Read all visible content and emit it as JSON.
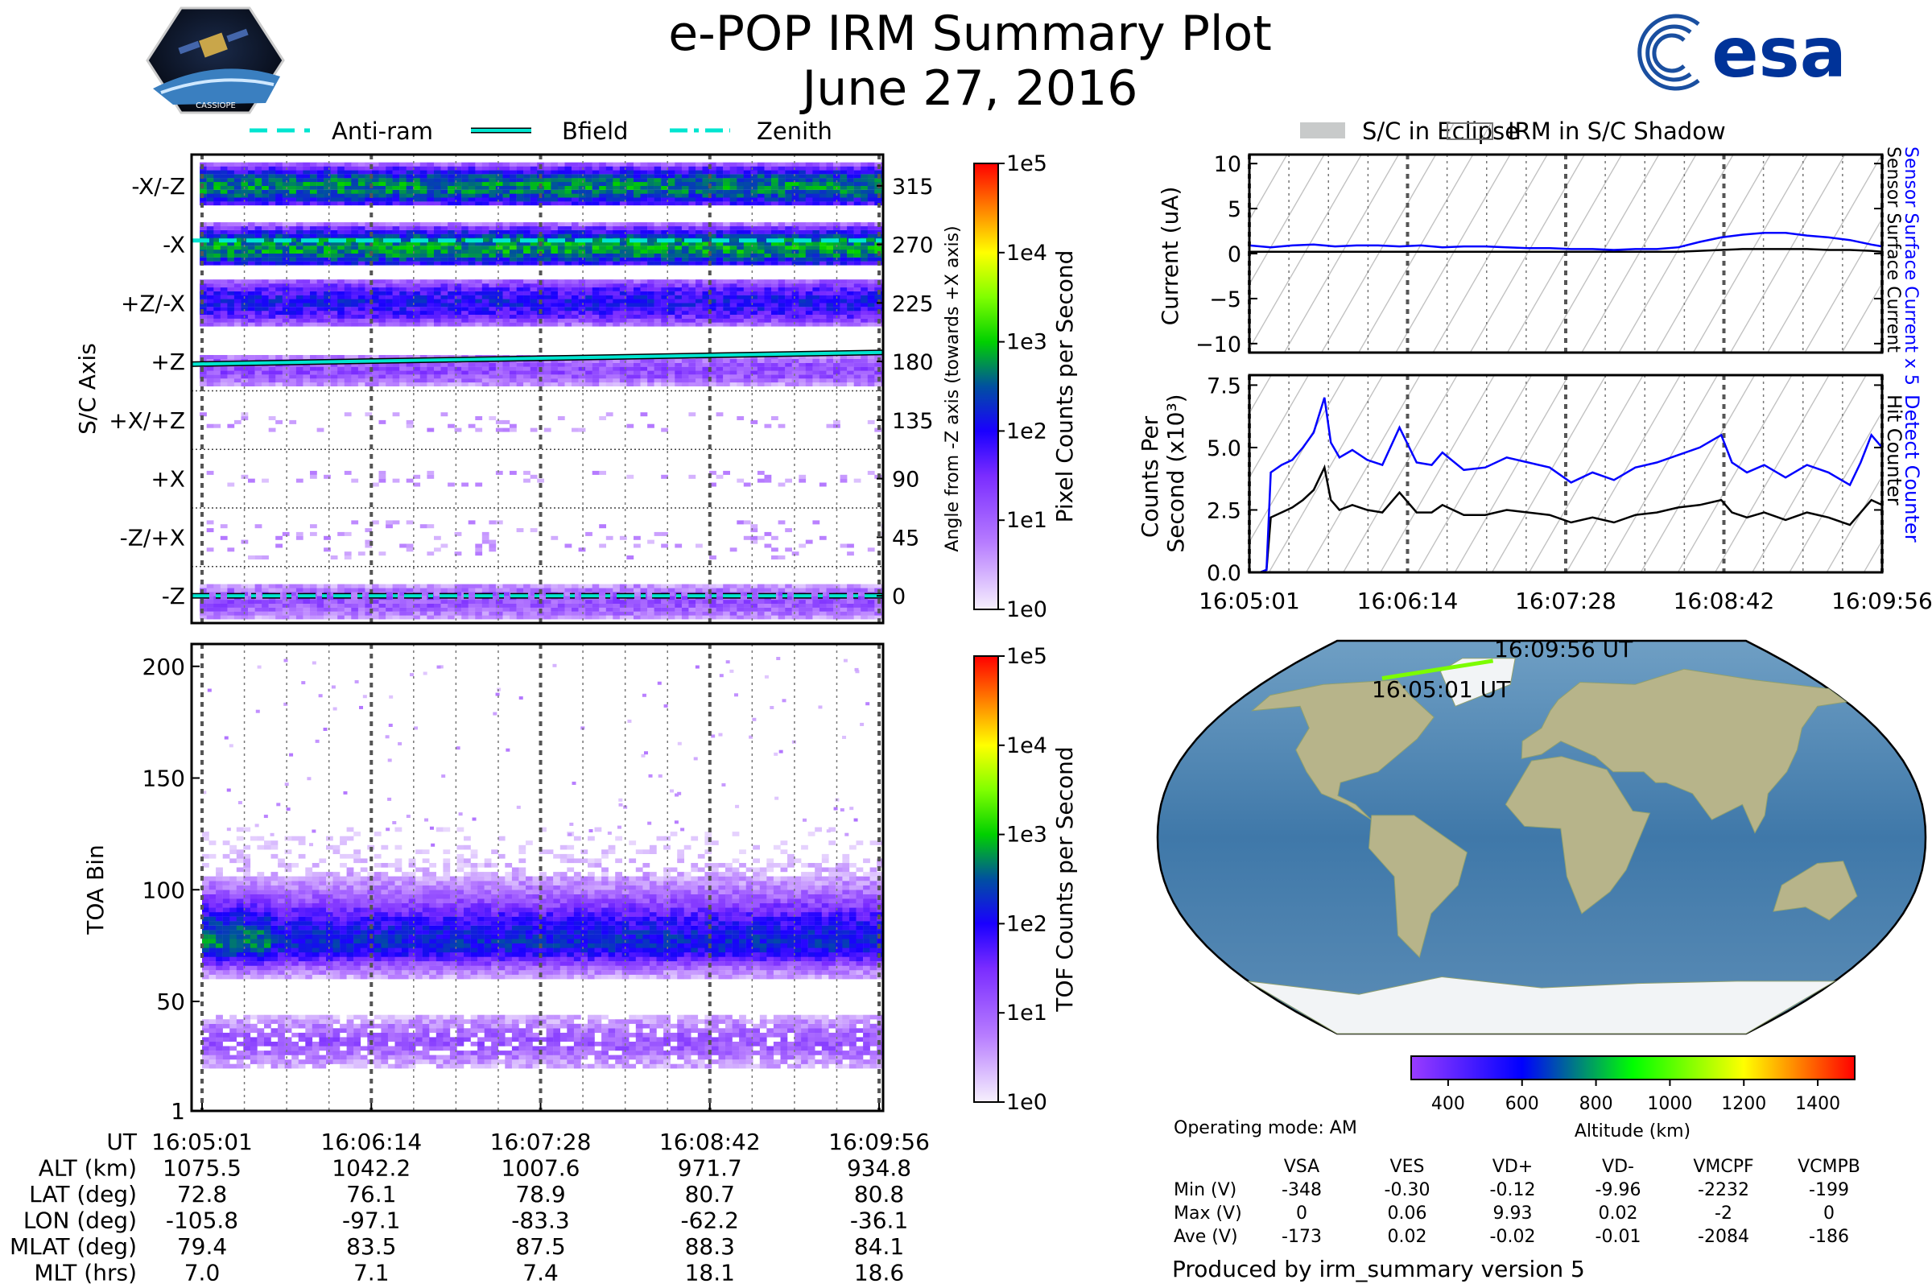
{
  "header": {
    "title": "e-POP IRM Summary Plot",
    "date": "June 27, 2016",
    "left_logo": "CASSIOPE mission logo",
    "left_logo_text": "CASSIOPE",
    "right_logo": "esa"
  },
  "angle_legend": {
    "items": [
      {
        "label": "Anti-ram",
        "style": "dashed",
        "color": "#00e5d0"
      },
      {
        "label": "Bfield",
        "style": "solid",
        "color": "#00e5d0"
      },
      {
        "label": "Zenith",
        "style": "dash-dot",
        "color": "#00e5d0"
      }
    ]
  },
  "shadow_legend": {
    "items": [
      {
        "label": "S/C in Eclipse",
        "style": "gray-fill"
      },
      {
        "label": "IRM in S/C Shadow",
        "style": "hatch"
      }
    ]
  },
  "colors": {
    "blue_series": "#0000ff",
    "black_series": "#000000",
    "track": "#7cfc00"
  },
  "chart_data": [
    {
      "id": "pixel-spectrogram",
      "type": "heatmap",
      "ylabel_left": "S/C Axis",
      "ylabel_right": "Angle from -Z axis (towards +X axis)",
      "x_range_s": [
        0,
        295
      ],
      "ylim": [
        -21,
        339
      ],
      "axis_labels": [
        "-X/-Z",
        "-X",
        "+Z/-X",
        "+Z",
        "+X/+Z",
        "+X",
        "-Z/+X",
        "-Z"
      ],
      "axis_angles": [
        315,
        270,
        225,
        180,
        135,
        90,
        45,
        0
      ],
      "angle_ticks": [
        "315",
        "270",
        "225",
        "180",
        "135",
        "90",
        "45",
        "0"
      ],
      "colorbar": {
        "label": "Pixel Counts per Second",
        "ticks": [
          "1e5",
          "1e4",
          "1e3",
          "1e2",
          "1e1",
          "1e0"
        ],
        "scale": "log",
        "range": [
          1,
          100000
        ]
      },
      "bands": [
        {
          "from": 300,
          "to": 332,
          "core": 313,
          "peak_log10": 2.7
        },
        {
          "from": 254,
          "to": 286,
          "core": 266,
          "peak_log10": 2.8
        },
        {
          "from": 207,
          "to": 241,
          "core": 224,
          "peak_log10": 2.0
        },
        {
          "from": 161,
          "to": 184,
          "core": 172,
          "peak_log10": 1.2
        },
        {
          "from": 126,
          "to": 140,
          "core": 133,
          "peak_log10": 0.4
        },
        {
          "from": 84,
          "to": 96,
          "core": 90,
          "peak_log10": 0.4
        },
        {
          "from": 28,
          "to": 56,
          "core": 42,
          "peak_log10": 0.5
        },
        {
          "from": -18,
          "to": 8,
          "core": -6,
          "peak_log10": 1.1
        }
      ],
      "overlay_lines": {
        "anti_ram_deg": [
          273,
          273
        ],
        "bfield_deg": [
          178,
          187
        ],
        "zenith_deg": [
          0,
          0
        ]
      }
    },
    {
      "id": "tof-spectrogram",
      "type": "heatmap",
      "ylabel": "TOA Bin",
      "y_ticks": [
        "200",
        "150",
        "100",
        "50",
        "1"
      ],
      "y_tick_values": [
        200,
        150,
        100,
        50,
        1
      ],
      "ylim": [
        1,
        210
      ],
      "x_range_s": [
        0,
        295
      ],
      "colorbar": {
        "label": "TOF Counts per Second",
        "ticks": [
          "1e5",
          "1e4",
          "1e3",
          "1e2",
          "1e1",
          "1e0"
        ],
        "scale": "log",
        "range": [
          1,
          100000
        ]
      },
      "bands": [
        {
          "from": 55,
          "to": 125,
          "core": 75,
          "peak_log10": 2.3
        },
        {
          "from": 20,
          "to": 42,
          "core": 31,
          "peak_log10": 1.0
        }
      ]
    },
    {
      "id": "current-plot",
      "type": "line",
      "ylabel": "Current (uA)",
      "ylim": [
        -11,
        11
      ],
      "y_ticks": [
        "10",
        "5",
        "0",
        "−5",
        "−10"
      ],
      "y_tick_values": [
        10,
        5,
        0,
        -5,
        -10
      ],
      "right_label_blue": "Sensor Surface Current x 5",
      "right_label_black": "Sensor Surface Current",
      "x": [
        0,
        10,
        20,
        30,
        40,
        50,
        60,
        70,
        80,
        90,
        100,
        110,
        120,
        130,
        140,
        150,
        160,
        170,
        180,
        190,
        200,
        210,
        220,
        230,
        240,
        250,
        260,
        270,
        280,
        290,
        295
      ],
      "series": [
        {
          "name": "Sensor Surface Current x 5",
          "color": "#0000ff",
          "values": [
            0.9,
            0.7,
            0.9,
            1.0,
            0.8,
            0.9,
            0.9,
            0.8,
            0.9,
            0.7,
            0.8,
            0.8,
            0.7,
            0.6,
            0.6,
            0.5,
            0.5,
            0.4,
            0.5,
            0.5,
            0.7,
            1.3,
            1.8,
            2.1,
            2.3,
            2.3,
            2.0,
            1.8,
            1.5,
            1.0,
            0.8
          ]
        },
        {
          "name": "Sensor Surface Current",
          "color": "#000000",
          "values": [
            0.2,
            0.2,
            0.2,
            0.2,
            0.2,
            0.2,
            0.2,
            0.2,
            0.2,
            0.2,
            0.2,
            0.2,
            0.2,
            0.2,
            0.2,
            0.2,
            0.2,
            0.2,
            0.2,
            0.2,
            0.2,
            0.3,
            0.4,
            0.5,
            0.5,
            0.5,
            0.5,
            0.4,
            0.4,
            0.3,
            0.2
          ]
        }
      ]
    },
    {
      "id": "counts-plot",
      "type": "line",
      "ylabel": "Counts Per Second (x10³)",
      "ylim": [
        0,
        7.9
      ],
      "y_ticks": [
        "7.5",
        "5.0",
        "2.5",
        "0.0"
      ],
      "y_tick_values": [
        7.5,
        5.0,
        2.5,
        0.0
      ],
      "right_label_blue": "Detect Counter",
      "right_label_black": "Hit Counter",
      "x": [
        0,
        5,
        8,
        10,
        15,
        20,
        25,
        30,
        35,
        38,
        42,
        48,
        55,
        62,
        70,
        78,
        85,
        90,
        100,
        110,
        120,
        130,
        140,
        150,
        160,
        170,
        180,
        190,
        200,
        210,
        220,
        225,
        232,
        240,
        250,
        260,
        270,
        280,
        285,
        290,
        295
      ],
      "series": [
        {
          "name": "Detect Counter",
          "color": "#0000ff",
          "values": [
            0,
            0,
            0.1,
            4.0,
            4.3,
            4.5,
            5.0,
            5.6,
            7.0,
            5.2,
            4.6,
            4.9,
            4.5,
            4.3,
            5.8,
            4.4,
            4.3,
            4.8,
            4.1,
            4.2,
            4.6,
            4.4,
            4.2,
            3.6,
            4.0,
            3.7,
            4.2,
            4.4,
            4.7,
            5.0,
            5.5,
            4.4,
            4.0,
            4.3,
            3.8,
            4.3,
            4.0,
            3.5,
            4.4,
            5.5,
            5.0
          ]
        },
        {
          "name": "Hit Counter",
          "color": "#000000",
          "values": [
            0,
            0,
            0.1,
            2.2,
            2.4,
            2.6,
            2.9,
            3.3,
            4.2,
            2.9,
            2.5,
            2.7,
            2.5,
            2.4,
            3.2,
            2.4,
            2.4,
            2.7,
            2.3,
            2.3,
            2.5,
            2.4,
            2.3,
            2.0,
            2.2,
            2.0,
            2.3,
            2.4,
            2.6,
            2.7,
            2.9,
            2.4,
            2.2,
            2.4,
            2.1,
            2.4,
            2.2,
            1.9,
            2.4,
            2.9,
            2.7
          ]
        }
      ]
    }
  ],
  "time_axis": {
    "ticks": [
      "16:05:01",
      "16:06:14",
      "16:07:28",
      "16:08:42",
      "16:09:56"
    ],
    "tick_seconds": [
      0,
      73.75,
      147.5,
      221.25,
      295
    ]
  },
  "ephemeris": {
    "rows": [
      {
        "label": "UT",
        "values": [
          "16:05:01",
          "16:06:14",
          "16:07:28",
          "16:08:42",
          "16:09:56"
        ]
      },
      {
        "label": "ALT (km)",
        "values": [
          "1075.5",
          "1042.2",
          "1007.6",
          "971.7",
          "934.8"
        ]
      },
      {
        "label": "LAT (deg)",
        "values": [
          "72.8",
          "76.1",
          "78.9",
          "80.7",
          "80.8"
        ]
      },
      {
        "label": "LON (deg)",
        "values": [
          "-105.8",
          "-97.1",
          "-83.3",
          "-62.2",
          "-36.1"
        ]
      },
      {
        "label": "MLAT (deg)",
        "values": [
          "79.4",
          "83.5",
          "87.5",
          "88.3",
          "84.1"
        ]
      },
      {
        "label": "MLT (hrs)",
        "values": [
          "7.0",
          "7.1",
          "7.4",
          "18.1",
          "18.6"
        ]
      }
    ]
  },
  "map": {
    "start_label": "16:05:01 UT",
    "end_label": "16:09:56 UT",
    "track": {
      "start_lon": -105.8,
      "start_lat": 72.8,
      "end_lon": -36.1,
      "end_lat": 80.8
    },
    "altitude_colorbar": {
      "label": "Altitude (km)",
      "ticks": [
        "400",
        "600",
        "800",
        "1000",
        "1200",
        "1400"
      ],
      "tick_values": [
        400,
        600,
        800,
        1000,
        1200,
        1400
      ],
      "range": [
        300,
        1500
      ]
    }
  },
  "voltages": {
    "mode": "Operating mode: AM",
    "columns": [
      "VSA",
      "VES",
      "VD+",
      "VD-",
      "VMCPF",
      "VCMPB"
    ],
    "rows": [
      {
        "label": "Min (V)",
        "values": [
          "-348",
          "-0.30",
          "-0.12",
          "-9.96",
          "-2232",
          "-199"
        ]
      },
      {
        "label": "Max (V)",
        "values": [
          "0",
          "0.06",
          "9.93",
          "0.02",
          "-2",
          "0"
        ]
      },
      {
        "label": "Ave (V)",
        "values": [
          "-173",
          "0.02",
          "-0.02",
          "-0.01",
          "-2084",
          "-186"
        ]
      }
    ]
  },
  "footer": "Produced by irm_summary version 5"
}
